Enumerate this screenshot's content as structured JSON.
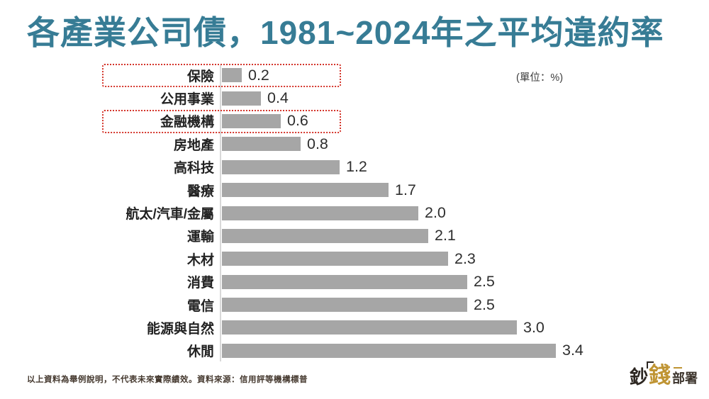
{
  "title": "各產業公司債，1981~2024年之平均違約率",
  "unit_label": "(單位：%)",
  "footnote": "以上資料為舉例說明，不代表未來實際績效。資料來源：信用評等機構標普",
  "logo": {
    "char_1": "鈔",
    "char_2": "錢",
    "char_3": "部署"
  },
  "chart_data": {
    "type": "bar",
    "orientation": "horizontal",
    "title": "各產業公司債，1981~2024年之平均違約率",
    "unit": "%",
    "categories": [
      "保險",
      "公用事業",
      "金融機構",
      "房地產",
      "高科技",
      "醫療",
      "航太/汽車/金屬",
      "運輸",
      "木材",
      "消費",
      "電信",
      "能源與自然",
      "休閒"
    ],
    "values": [
      0.2,
      0.4,
      0.6,
      0.8,
      1.2,
      1.7,
      2.0,
      2.1,
      2.3,
      2.5,
      2.5,
      3.0,
      3.4
    ],
    "value_labels": [
      "0.2",
      "0.4",
      "0.6",
      "0.8",
      "1.2",
      "1.7",
      "2.0",
      "2.1",
      "2.3",
      "2.5",
      "2.5",
      "3.0",
      "3.4"
    ],
    "highlighted_categories": [
      "保險",
      "金融機構"
    ],
    "xlim": [
      0,
      3.6
    ],
    "grid": false,
    "legend": false,
    "bar_color": "#a6a6a6",
    "axis_line_color": "#d9d9d9",
    "highlight_border_color": "#d4352b",
    "title_color": "#377c95"
  }
}
